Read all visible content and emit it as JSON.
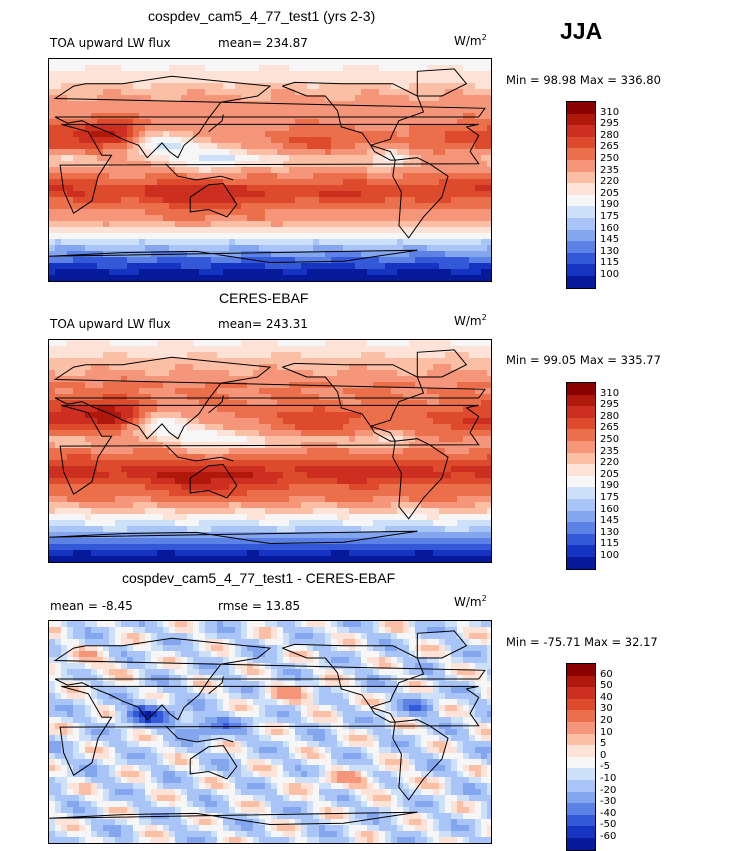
{
  "season": "JJA",
  "units_label": "W/m",
  "units_sup": "2",
  "panels": [
    {
      "title": "cospdev_cam5_4_77_test1 (yrs 2-3)",
      "left_label": "TOA upward LW flux",
      "mid_label": "mean= 234.87",
      "minmax": "Min =   98.98  Max =  336.80",
      "field": "model"
    },
    {
      "title": "CERES-EBAF",
      "left_label": "TOA upward LW flux",
      "mid_label": "mean= 243.31",
      "minmax": "Min =   99.05  Max =  335.77",
      "field": "obs"
    },
    {
      "title": "cospdev_cam5_4_77_test1 - CERES-EBAF",
      "left_label": "mean =   -8.45",
      "mid_label": "rmse =   13.85",
      "minmax": "Min = -75.71  Max =   32.17",
      "field": "diff"
    }
  ],
  "colorbars": {
    "abs_levels": [
      "310",
      "295",
      "280",
      "265",
      "250",
      "235",
      "220",
      "205",
      "190",
      "175",
      "160",
      "145",
      "130",
      "115",
      "100"
    ],
    "diff_levels": [
      "60",
      "50",
      "40",
      "30",
      "20",
      "10",
      "5",
      "0",
      "-5",
      "-10",
      "-20",
      "-30",
      "-40",
      "-50",
      "-60"
    ],
    "colors": [
      "#8b0000",
      "#b0180c",
      "#cc2f1f",
      "#de4a2c",
      "#ec6f4c",
      "#f5967a",
      "#fbbfa6",
      "#fde3d7",
      "#f6f6f6",
      "#cde0fa",
      "#a9c4f6",
      "#84a6ef",
      "#5c82e6",
      "#3358d8",
      "#1534c2",
      "#05199a"
    ]
  },
  "chart_data": [
    {
      "type": "heatmap",
      "title": "cospdev_cam5_4_77_test1 (yrs 2-3)",
      "variable": "TOA upward LW flux",
      "units": "W/m2",
      "mean": 234.87,
      "min": 98.98,
      "max": 336.8,
      "contour_levels": [
        100,
        115,
        130,
        145,
        160,
        175,
        190,
        205,
        220,
        235,
        250,
        265,
        280,
        295,
        310
      ],
      "lon_range": [
        0,
        360
      ],
      "lat_range": [
        -90,
        90
      ]
    },
    {
      "type": "heatmap",
      "title": "CERES-EBAF",
      "variable": "TOA upward LW flux",
      "units": "W/m2",
      "mean": 243.31,
      "min": 99.05,
      "max": 335.77,
      "contour_levels": [
        100,
        115,
        130,
        145,
        160,
        175,
        190,
        205,
        220,
        235,
        250,
        265,
        280,
        295,
        310
      ],
      "lon_range": [
        0,
        360
      ],
      "lat_range": [
        -90,
        90
      ]
    },
    {
      "type": "heatmap",
      "title": "cospdev_cam5_4_77_test1 - CERES-EBAF",
      "units": "W/m2",
      "mean": -8.45,
      "rmse": 13.85,
      "min": -75.71,
      "max": 32.17,
      "contour_levels": [
        -60,
        -50,
        -40,
        -30,
        -20,
        -10,
        -5,
        0,
        5,
        10,
        20,
        30,
        40,
        50,
        60
      ],
      "lon_range": [
        0,
        360
      ],
      "lat_range": [
        -90,
        90
      ]
    }
  ]
}
